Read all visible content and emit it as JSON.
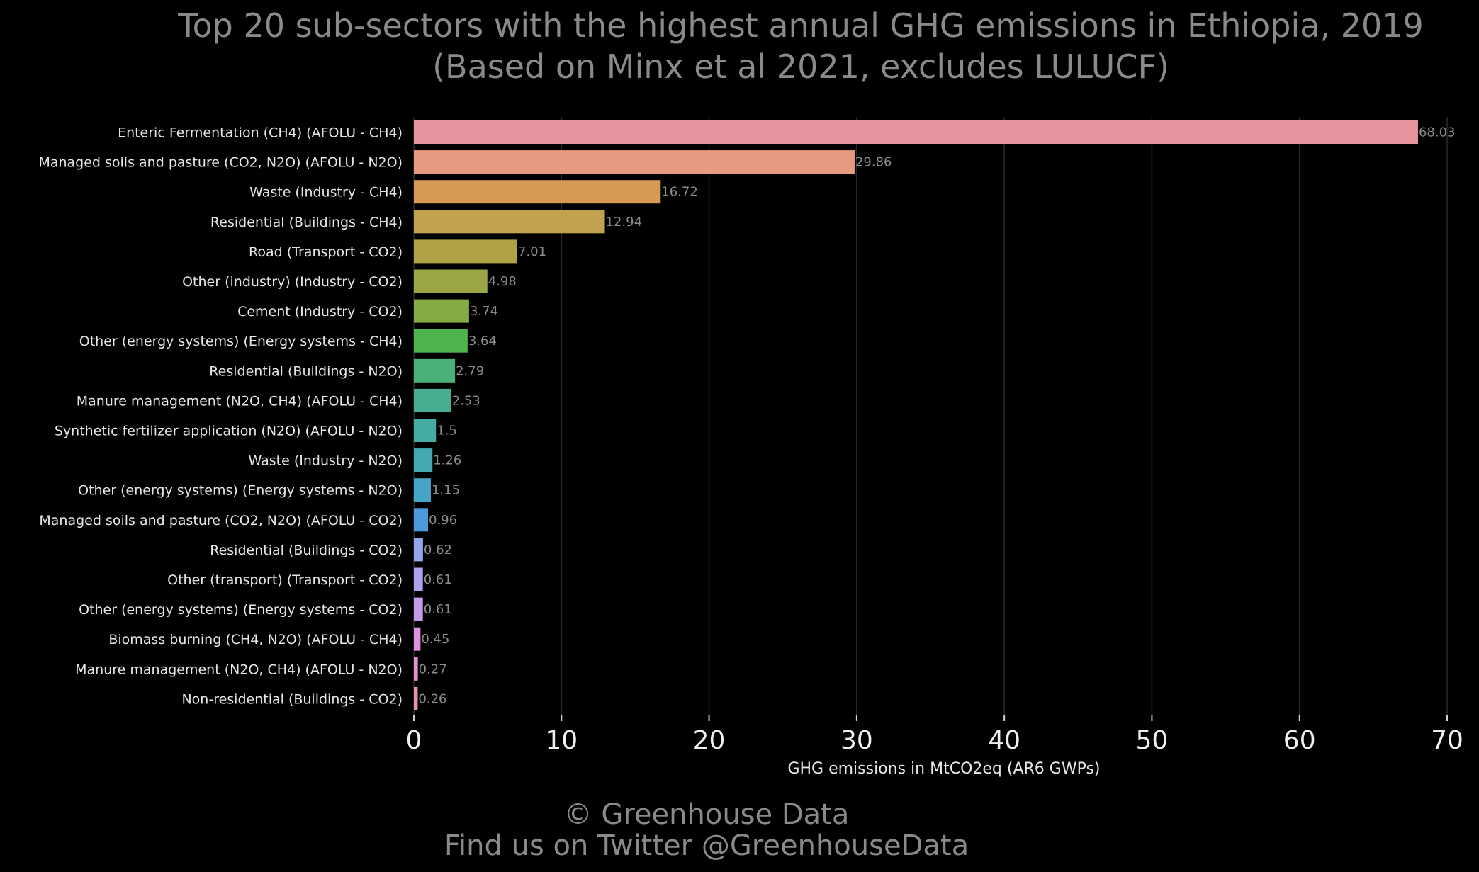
{
  "chart_data": {
    "type": "bar",
    "orientation": "horizontal",
    "title": "Top 20 sub-sectors with the highest annual GHG emissions in Ethiopia, 2019",
    "subtitle": "(Based on Minx et al 2021, excludes LULUCF)",
    "xlabel": "GHG emissions in MtCO2eq (AR6 GWPs)",
    "ylabel": "",
    "xlim": [
      0,
      70
    ],
    "xticks": [
      0,
      10,
      20,
      30,
      40,
      50,
      60,
      70
    ],
    "grid": "vertical",
    "categories": [
      "Enteric Fermentation (CH4) (AFOLU - CH4)",
      "Managed soils and pasture (CO2, N2O) (AFOLU - N2O)",
      "Waste (Industry - CH4)",
      "Residential (Buildings - CH4)",
      "Road (Transport - CO2)",
      "Other (industry) (Industry - CO2)",
      "Cement (Industry - CO2)",
      "Other (energy systems) (Energy systems - CH4)",
      "Residential (Buildings - N2O)",
      "Manure management (N2O, CH4) (AFOLU - CH4)",
      "Synthetic fertilizer application (N2O) (AFOLU - N2O)",
      "Waste (Industry - N2O)",
      "Other (energy systems) (Energy systems - N2O)",
      "Managed soils and pasture (CO2, N2O) (AFOLU - CO2)",
      "Residential (Buildings - CO2)",
      "Other (transport) (Transport - CO2)",
      "Other (energy systems) (Energy systems - CO2)",
      "Biomass burning (CH4, N2O) (AFOLU - CH4)",
      "Manure management (N2O, CH4) (AFOLU - N2O)",
      "Non-residential (Buildings - CO2)"
    ],
    "values": [
      68.03,
      29.86,
      16.72,
      12.94,
      7.01,
      4.98,
      3.74,
      3.64,
      2.79,
      2.53,
      1.5,
      1.26,
      1.15,
      0.96,
      0.62,
      0.61,
      0.61,
      0.45,
      0.27,
      0.26
    ],
    "value_labels": [
      "68.03",
      "29.86",
      "16.72",
      "12.94",
      "7.01",
      "4.98",
      "3.74",
      "3.64",
      "2.79",
      "2.53",
      "1.5",
      "1.26",
      "1.15",
      "0.96",
      "0.62",
      "0.61",
      "0.61",
      "0.45",
      "0.27",
      "0.26"
    ],
    "colors": [
      "#e8949e",
      "#e69a80",
      "#d69a55",
      "#c3a24f",
      "#b0a347",
      "#9da646",
      "#87ab44",
      "#4db54c",
      "#4ab278",
      "#48ae92",
      "#46aba3",
      "#44a8b3",
      "#46a4c6",
      "#4b9bdc",
      "#8fa6ea",
      "#aba3ee",
      "#c49ce9",
      "#dd92e2",
      "#e692cc",
      "#e993b4"
    ]
  },
  "footer": {
    "copyright": "© Greenhouse Data",
    "twitter": "Find us on Twitter @GreenhouseData"
  }
}
